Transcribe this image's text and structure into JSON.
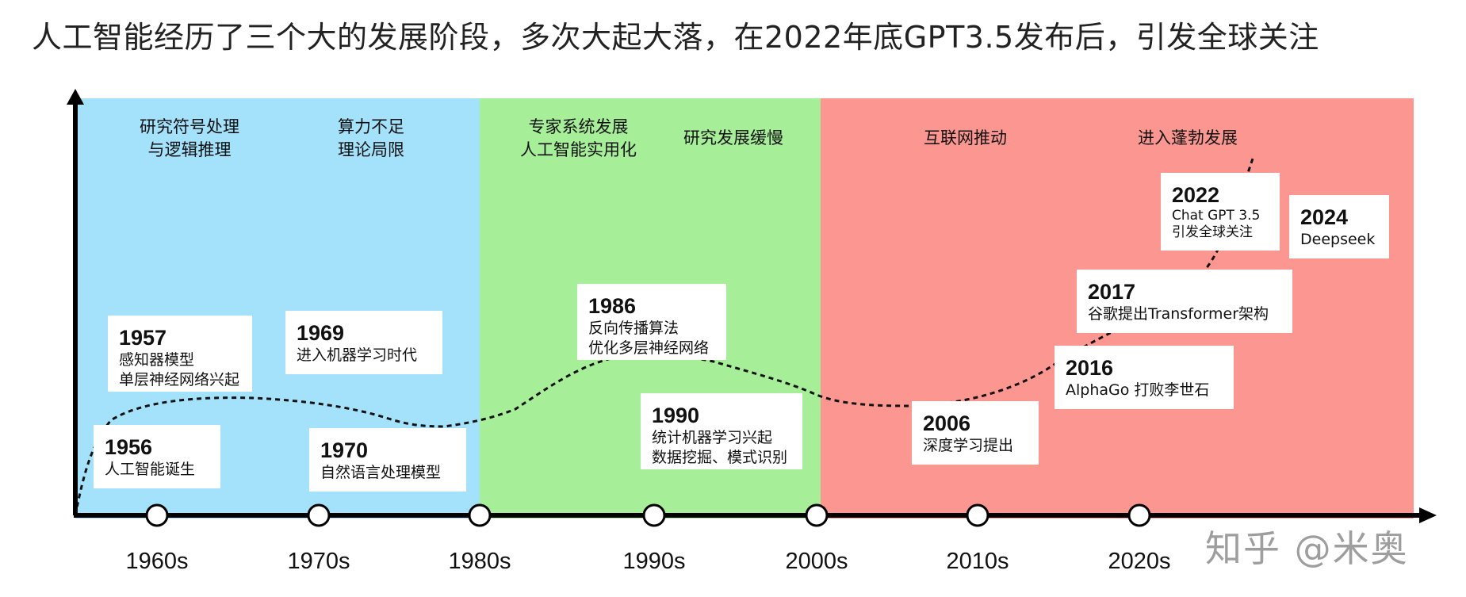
{
  "title": "人工智能经历了三个大的发展阶段，多次大起大落，在2022年底GPT3.5发布后，引发全球关注",
  "colors": {
    "era1": "#a4e1fb",
    "era2": "#a6ef98",
    "era3": "#fc9690",
    "axis": "#000000"
  },
  "phases": {
    "p1": [
      "研究符号处理",
      "与逻辑推理"
    ],
    "p2": [
      "算力不足",
      "理论局限"
    ],
    "p3": [
      "专家系统发展",
      "人工智能实用化"
    ],
    "p4": [
      "研究发展缓慢"
    ],
    "p5": [
      "互联网推动"
    ],
    "p6": [
      "进入蓬勃发展"
    ]
  },
  "events": {
    "e1957": {
      "year": "1957",
      "lines": [
        "感知器模型",
        "单层神经网络兴起"
      ]
    },
    "e1969": {
      "year": "1969",
      "lines": [
        "进入机器学习时代"
      ]
    },
    "e1956": {
      "year": "1956",
      "lines": [
        "人工智能诞生"
      ]
    },
    "e1970": {
      "year": "1970",
      "lines": [
        "自然语言处理模型"
      ]
    },
    "e1986": {
      "year": "1986",
      "lines": [
        "反向传播算法",
        "优化多层神经网络"
      ]
    },
    "e1990": {
      "year": "1990",
      "lines": [
        "统计机器学习兴起",
        "数据挖掘、模式识别"
      ]
    },
    "e2006": {
      "year": "2006",
      "lines": [
        "深度学习提出"
      ]
    },
    "e2016": {
      "year": "2016",
      "lines": [
        "AlphaGo 打败李世石"
      ]
    },
    "e2017": {
      "year": "2017",
      "lines": [
        "谷歌提出Transformer架构"
      ]
    },
    "e2022": {
      "year": "2022",
      "lines": [
        "Chat GPT 3.5",
        "引发全球关注"
      ]
    },
    "e2024": {
      "year": "2024",
      "lines": [
        "Deepseek"
      ]
    }
  },
  "decades": [
    "1960s",
    "1970s",
    "1980s",
    "1990s",
    "2000s",
    "2010s",
    "2020s"
  ],
  "watermark": "知乎 @米奥"
}
